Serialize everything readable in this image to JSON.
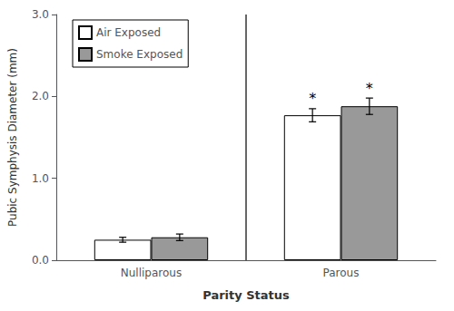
{
  "chart_data": {
    "type": "bar",
    "categories": [
      "Nulliparous",
      "Parous"
    ],
    "xlabel": "Parity Status",
    "ylabel": "Pubic Symphysis Diameter (mm)",
    "series": [
      {
        "name": "Air Exposed",
        "color": "white",
        "values": [
          0.25,
          1.77
        ],
        "errors": [
          0.03,
          0.08
        ],
        "annotations": [
          null,
          "*"
        ]
      },
      {
        "name": "Smoke Exposed",
        "color": "#999999",
        "values": [
          0.28,
          1.88
        ],
        "errors": [
          0.04,
          0.1
        ],
        "annotations": [
          null,
          "*"
        ]
      }
    ],
    "ylim": [
      0,
      3.0
    ],
    "yticks": [
      {
        "value": 0.0,
        "label": "0.0"
      },
      {
        "value": 1.0,
        "label": "1.0"
      },
      {
        "value": 2.0,
        "label": "2.0"
      },
      {
        "value": 3.0,
        "label": "3.0"
      }
    ],
    "legend": "upper left",
    "grid": false
  }
}
